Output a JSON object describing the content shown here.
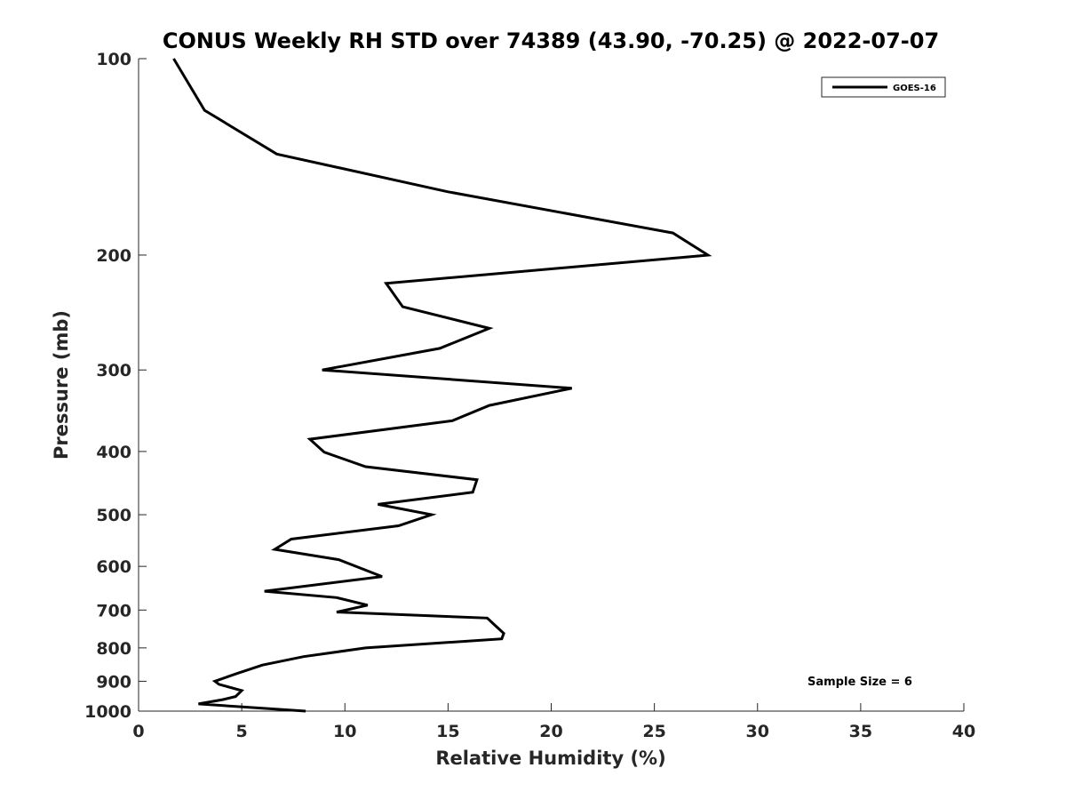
{
  "chart_data": {
    "type": "line",
    "title": "CONUS Weekly RH STD over 74389 (43.90, -70.25) @ 2022-07-07",
    "xlabel": "Relative Humidity (%)",
    "ylabel": "Pressure (mb)",
    "xlim": [
      0,
      40
    ],
    "ylim": [
      1000,
      100
    ],
    "yscale": "log",
    "y_reversed": true,
    "xticks": [
      "0",
      "5",
      "10",
      "15",
      "20",
      "25",
      "30",
      "35",
      "40"
    ],
    "yticks": [
      "100",
      "200",
      "300",
      "400",
      "500",
      "600",
      "700",
      "800",
      "900",
      "1000"
    ],
    "grid": false,
    "legend": {
      "location": "top-right",
      "entries": [
        "GOES-16"
      ]
    },
    "annotations": [
      "Sample Size = 6"
    ],
    "series": [
      {
        "name": "GOES-16",
        "color": "#000000",
        "x": [
          1.7,
          3.2,
          6.7,
          15.0,
          25.9,
          27.6,
          12.0,
          12.8,
          17.0,
          14.6,
          8.9,
          21.0,
          17.0,
          15.2,
          8.3,
          9.0,
          11.0,
          16.4,
          16.2,
          11.6,
          14.2,
          12.6,
          7.4,
          6.6,
          9.7,
          11.8,
          6.1,
          9.6,
          11.1,
          9.6,
          16.9,
          17.3,
          17.7,
          17.6,
          11.0,
          8.0,
          6.0,
          4.8,
          3.7,
          3.9,
          5.0,
          4.7,
          4.1,
          2.9,
          8.1
        ],
        "y": [
          100,
          120,
          140,
          160,
          185,
          200,
          221,
          240,
          259,
          278,
          300,
          320,
          340,
          359,
          383,
          401,
          422,
          442,
          462,
          482,
          500,
          520,
          545,
          565,
          586,
          622,
          655,
          670,
          688,
          705,
          720,
          740,
          760,
          775,
          800,
          825,
          850,
          875,
          900,
          910,
          930,
          950,
          960,
          975,
          1000
        ]
      }
    ]
  }
}
